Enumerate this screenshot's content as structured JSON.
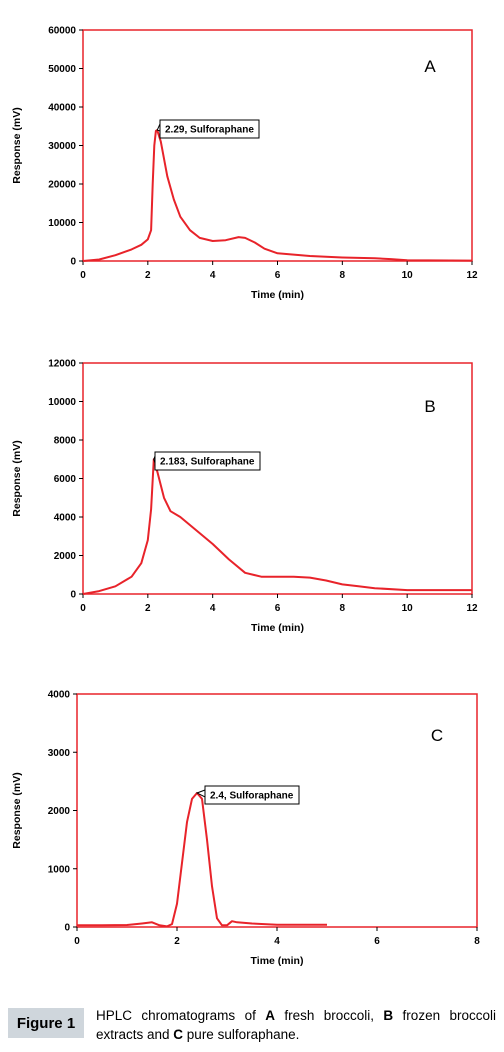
{
  "chart_data": [
    {
      "type": "line",
      "title": "",
      "panel_label": "A",
      "xlabel": "Time (min)",
      "ylabel": "Response (mV)",
      "xlim": [
        0,
        12
      ],
      "ylim": [
        0,
        60000
      ],
      "xticks": [
        0,
        2,
        4,
        6,
        8,
        10,
        12
      ],
      "yticks": [
        0,
        10000,
        20000,
        30000,
        40000,
        50000,
        60000
      ],
      "grid": false,
      "series": [
        {
          "color": "#e8232a",
          "x": [
            0,
            0.5,
            1,
            1.5,
            1.8,
            2.0,
            2.1,
            2.15,
            2.2,
            2.25,
            2.29,
            2.4,
            2.6,
            2.8,
            3.0,
            3.3,
            3.6,
            4.0,
            4.4,
            4.8,
            5.0,
            5.3,
            5.6,
            6.0,
            7.0,
            8.0,
            9.0,
            9.5,
            10.0,
            12.0
          ],
          "y": [
            0,
            400,
            1500,
            3000,
            4200,
            5600,
            8000,
            20000,
            30000,
            33800,
            34000,
            31000,
            22000,
            16000,
            11500,
            8000,
            6000,
            5200,
            5400,
            6200,
            6000,
            4800,
            3200,
            2000,
            1300,
            900,
            700,
            500,
            200,
            100
          ]
        }
      ],
      "annotation": {
        "text": "2.29, Sulforaphane",
        "x": 2.29,
        "y": 34000
      }
    },
    {
      "type": "line",
      "title": "",
      "panel_label": "B",
      "xlabel": "Time (min)",
      "ylabel": "Response (mV)",
      "xlim": [
        0,
        12
      ],
      "ylim": [
        0,
        12000
      ],
      "xticks": [
        0,
        2,
        4,
        6,
        8,
        10,
        12
      ],
      "yticks": [
        0,
        2000,
        4000,
        6000,
        8000,
        10000,
        12000
      ],
      "grid": false,
      "series": [
        {
          "color": "#e8232a",
          "x": [
            0,
            0.5,
            1,
            1.5,
            1.8,
            2.0,
            2.1,
            2.183,
            2.3,
            2.5,
            2.7,
            3.0,
            3.5,
            4.0,
            4.5,
            5.0,
            5.5,
            6.0,
            6.5,
            7.0,
            7.5,
            8.0,
            8.5,
            9.0,
            10.0,
            12.0
          ],
          "y": [
            0,
            150,
            400,
            900,
            1600,
            2800,
            4400,
            7000,
            6300,
            5000,
            4300,
            4000,
            3300,
            2600,
            1800,
            1100,
            900,
            900,
            900,
            850,
            700,
            500,
            400,
            300,
            200,
            200
          ]
        }
      ],
      "annotation": {
        "text": "2.183, Sulforaphane",
        "x": 2.183,
        "y": 7000
      }
    },
    {
      "type": "line",
      "title": "",
      "panel_label": "C",
      "xlabel": "Time (min)",
      "ylabel": "Response (mV)",
      "xlim": [
        0,
        8
      ],
      "ylim": [
        0,
        4000
      ],
      "xticks": [
        0,
        2,
        4,
        6,
        8
      ],
      "yticks": [
        0,
        1000,
        2000,
        3000,
        4000
      ],
      "grid": false,
      "series": [
        {
          "color": "#e8232a",
          "x": [
            0,
            0.5,
            1.0,
            1.3,
            1.5,
            1.65,
            1.8,
            1.9,
            2.0,
            2.1,
            2.2,
            2.3,
            2.4,
            2.5,
            2.6,
            2.7,
            2.8,
            2.9,
            3.0,
            3.1,
            3.2,
            3.5,
            4.0,
            5.0
          ],
          "y": [
            30,
            30,
            35,
            60,
            80,
            30,
            10,
            50,
            400,
            1100,
            1800,
            2200,
            2300,
            2200,
            1500,
            700,
            150,
            30,
            30,
            100,
            80,
            60,
            40,
            40
          ]
        }
      ],
      "annotation": {
        "text": "2.4, Sulforaphane",
        "x": 2.4,
        "y": 2300
      }
    }
  ],
  "caption": {
    "badge": "Figure 1",
    "parts": [
      {
        "text": "HPLC chromatograms of ",
        "bold": false
      },
      {
        "text": "A",
        "bold": true
      },
      {
        "text": " fresh broccoli, ",
        "bold": false
      },
      {
        "text": "B",
        "bold": true
      },
      {
        "text": " frozen broccoli extracts and ",
        "bold": false
      },
      {
        "text": "C",
        "bold": true
      },
      {
        "text": " pure sulforaphane.",
        "bold": false
      }
    ]
  }
}
